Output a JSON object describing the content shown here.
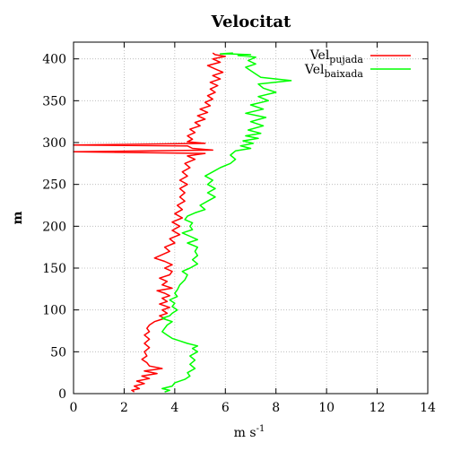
{
  "chart_data": {
    "type": "line",
    "title": "Velocitat",
    "xlabel": {
      "base": "m s",
      "sup": "-1"
    },
    "ylabel": "m",
    "xlim": [
      0,
      14
    ],
    "ylim": [
      0,
      420
    ],
    "x_ticks": [
      0,
      2,
      4,
      6,
      8,
      10,
      12,
      14
    ],
    "y_ticks": [
      0,
      50,
      100,
      150,
      200,
      250,
      300,
      350,
      400
    ],
    "grid": true,
    "legend_position": "top-right",
    "series": [
      {
        "name": {
          "base": "Vel",
          "sub": "pujada"
        },
        "color": "#ff0000",
        "points": [
          [
            2.4,
            2
          ],
          [
            2.3,
            4
          ],
          [
            2.6,
            6
          ],
          [
            2.4,
            9
          ],
          [
            2.8,
            12
          ],
          [
            2.5,
            15
          ],
          [
            3.0,
            18
          ],
          [
            2.7,
            21
          ],
          [
            3.3,
            24
          ],
          [
            2.8,
            27
          ],
          [
            3.5,
            30
          ],
          [
            3.0,
            33
          ],
          [
            2.9,
            37
          ],
          [
            2.7,
            41
          ],
          [
            2.9,
            45
          ],
          [
            2.8,
            50
          ],
          [
            3.0,
            55
          ],
          [
            2.8,
            60
          ],
          [
            3.0,
            65
          ],
          [
            2.8,
            70
          ],
          [
            3.0,
            74
          ],
          [
            2.9,
            78
          ],
          [
            3.0,
            82
          ],
          [
            3.2,
            86
          ],
          [
            3.4,
            88
          ],
          [
            3.6,
            90
          ],
          [
            3.4,
            93
          ],
          [
            3.7,
            96
          ],
          [
            3.5,
            100
          ],
          [
            3.8,
            103
          ],
          [
            3.4,
            107
          ],
          [
            3.7,
            110
          ],
          [
            3.5,
            114
          ],
          [
            3.8,
            117
          ],
          [
            3.6,
            120
          ],
          [
            3.3,
            123
          ],
          [
            3.9,
            126
          ],
          [
            3.5,
            130
          ],
          [
            3.7,
            134
          ],
          [
            3.4,
            138
          ],
          [
            3.8,
            142
          ],
          [
            3.9,
            146
          ],
          [
            3.6,
            150
          ],
          [
            3.9,
            154
          ],
          [
            3.6,
            158
          ],
          [
            3.2,
            162
          ],
          [
            3.5,
            166
          ],
          [
            3.8,
            170
          ],
          [
            3.6,
            175
          ],
          [
            4.0,
            180
          ],
          [
            3.8,
            185
          ],
          [
            4.2,
            190
          ],
          [
            3.9,
            195
          ],
          [
            4.2,
            200
          ],
          [
            3.9,
            205
          ],
          [
            4.3,
            210
          ],
          [
            4.0,
            215
          ],
          [
            4.3,
            220
          ],
          [
            4.1,
            225
          ],
          [
            4.4,
            230
          ],
          [
            4.2,
            235
          ],
          [
            4.4,
            240
          ],
          [
            4.2,
            245
          ],
          [
            4.5,
            250
          ],
          [
            4.2,
            255
          ],
          [
            4.5,
            260
          ],
          [
            4.3,
            265
          ],
          [
            4.6,
            270
          ],
          [
            4.4,
            275
          ],
          [
            4.8,
            280
          ],
          [
            4.5,
            284
          ],
          [
            5.2,
            287
          ],
          [
            0,
            289
          ],
          [
            5.5,
            291
          ],
          [
            4.7,
            293
          ],
          [
            4.5,
            296
          ],
          [
            0,
            297
          ],
          [
            5.2,
            299
          ],
          [
            4.5,
            301
          ],
          [
            4.7,
            304
          ],
          [
            4.5,
            308
          ],
          [
            4.8,
            312
          ],
          [
            4.6,
            316
          ],
          [
            5.0,
            320
          ],
          [
            4.8,
            324
          ],
          [
            5.2,
            328
          ],
          [
            4.9,
            332
          ],
          [
            5.3,
            336
          ],
          [
            5.0,
            340
          ],
          [
            5.4,
            344
          ],
          [
            5.2,
            348
          ],
          [
            5.5,
            352
          ],
          [
            5.3,
            356
          ],
          [
            5.6,
            360
          ],
          [
            5.4,
            364
          ],
          [
            5.7,
            368
          ],
          [
            5.4,
            372
          ],
          [
            5.8,
            376
          ],
          [
            5.5,
            380
          ],
          [
            5.9,
            384
          ],
          [
            5.6,
            388
          ],
          [
            5.3,
            392
          ],
          [
            5.8,
            396
          ],
          [
            5.5,
            400
          ],
          [
            6.0,
            403
          ],
          [
            5.6,
            405
          ],
          [
            5.5,
            407
          ]
        ]
      },
      {
        "name": {
          "base": "Vel",
          "sub": "baixada"
        },
        "color": "#00ff00",
        "points": [
          [
            3.6,
            2
          ],
          [
            3.8,
            4
          ],
          [
            3.5,
            6
          ],
          [
            3.9,
            9
          ],
          [
            4.0,
            13
          ],
          [
            4.4,
            17
          ],
          [
            4.6,
            21
          ],
          [
            4.5,
            25
          ],
          [
            4.8,
            30
          ],
          [
            4.6,
            35
          ],
          [
            4.8,
            40
          ],
          [
            4.6,
            45
          ],
          [
            4.9,
            50
          ],
          [
            4.7,
            54
          ],
          [
            4.9,
            57
          ],
          [
            4.5,
            60
          ],
          [
            4.2,
            63
          ],
          [
            3.9,
            66
          ],
          [
            3.7,
            70
          ],
          [
            3.5,
            74
          ],
          [
            3.6,
            78
          ],
          [
            3.7,
            82
          ],
          [
            3.9,
            86
          ],
          [
            3.7,
            88
          ],
          [
            3.5,
            90
          ],
          [
            3.8,
            93
          ],
          [
            3.9,
            96
          ],
          [
            4.1,
            100
          ],
          [
            3.9,
            104
          ],
          [
            4.0,
            108
          ],
          [
            3.8,
            112
          ],
          [
            4.1,
            116
          ],
          [
            4.0,
            120
          ],
          [
            4.1,
            124
          ],
          [
            4.2,
            130
          ],
          [
            4.4,
            136
          ],
          [
            4.5,
            142
          ],
          [
            4.3,
            146
          ],
          [
            4.6,
            150
          ],
          [
            4.9,
            155
          ],
          [
            4.7,
            160
          ],
          [
            4.9,
            165
          ],
          [
            4.8,
            170
          ],
          [
            4.9,
            175
          ],
          [
            4.5,
            180
          ],
          [
            4.9,
            184
          ],
          [
            4.6,
            188
          ],
          [
            4.3,
            192
          ],
          [
            4.7,
            196
          ],
          [
            4.6,
            200
          ],
          [
            4.7,
            204
          ],
          [
            4.4,
            208
          ],
          [
            4.5,
            212
          ],
          [
            4.8,
            216
          ],
          [
            5.2,
            220
          ],
          [
            5.0,
            225
          ],
          [
            5.3,
            230
          ],
          [
            5.6,
            235
          ],
          [
            5.3,
            240
          ],
          [
            5.6,
            245
          ],
          [
            5.3,
            250
          ],
          [
            5.5,
            255
          ],
          [
            5.2,
            260
          ],
          [
            5.5,
            265
          ],
          [
            5.8,
            270
          ],
          [
            6.2,
            275
          ],
          [
            6.4,
            280
          ],
          [
            6.2,
            285
          ],
          [
            6.4,
            290
          ],
          [
            7.0,
            293
          ],
          [
            6.6,
            296
          ],
          [
            7.1,
            299
          ],
          [
            6.7,
            302
          ],
          [
            7.3,
            305
          ],
          [
            6.8,
            308
          ],
          [
            7.4,
            311
          ],
          [
            6.9,
            315
          ],
          [
            7.5,
            320
          ],
          [
            7.0,
            325
          ],
          [
            7.6,
            330
          ],
          [
            6.8,
            335
          ],
          [
            7.5,
            340
          ],
          [
            7.0,
            345
          ],
          [
            7.7,
            350
          ],
          [
            7.3,
            355
          ],
          [
            8.0,
            360
          ],
          [
            7.5,
            365
          ],
          [
            7.3,
            370
          ],
          [
            8.6,
            374
          ],
          [
            7.4,
            378
          ],
          [
            7.2,
            382
          ],
          [
            7.0,
            386
          ],
          [
            6.8,
            390
          ],
          [
            7.2,
            394
          ],
          [
            6.9,
            398
          ],
          [
            7.2,
            402
          ],
          [
            6.5,
            404
          ],
          [
            7.0,
            405
          ],
          [
            6.2,
            406
          ],
          [
            5.8,
            406
          ],
          [
            6.3,
            407
          ]
        ]
      }
    ]
  }
}
